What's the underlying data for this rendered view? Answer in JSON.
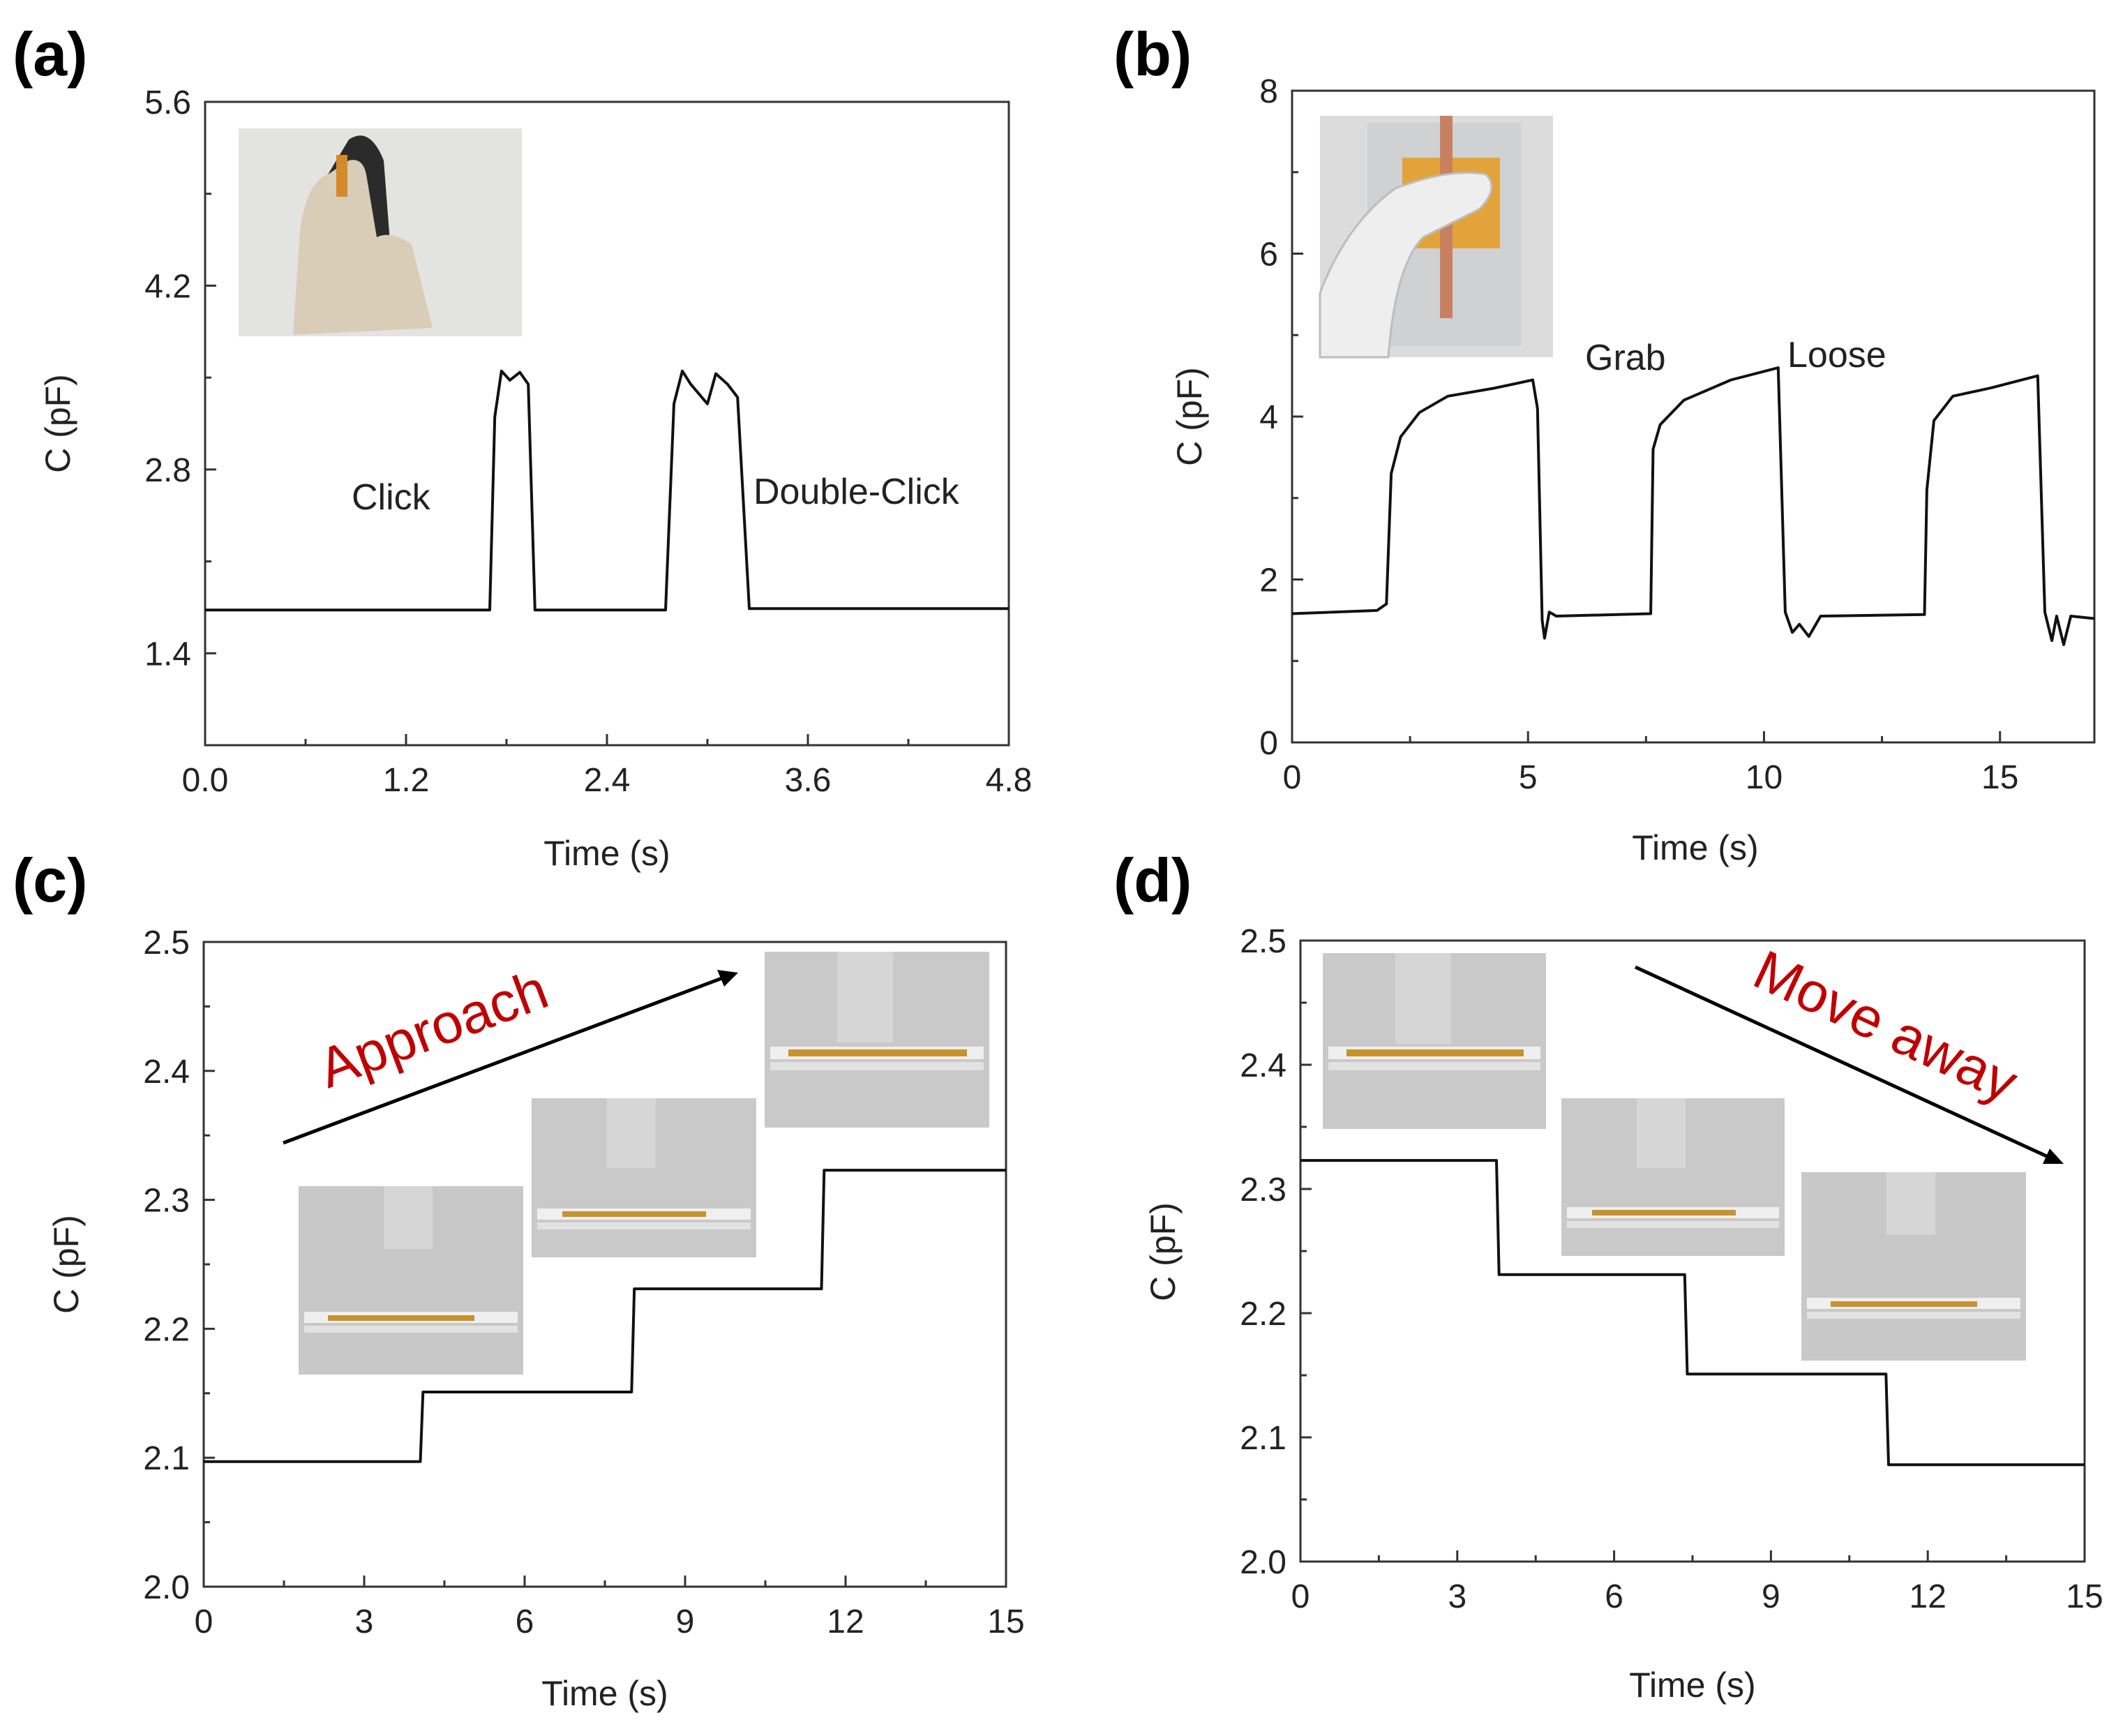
{
  "chart_data": [
    {
      "id": "a",
      "panel_label": "(a)",
      "type": "line",
      "xlabel": "Time (s)",
      "ylabel": "C (pF)",
      "xlim": [
        0,
        4.8
      ],
      "ylim": [
        0.7,
        5.6
      ],
      "xticks": [
        "0.0",
        "1.2",
        "2.4",
        "3.6",
        "4.8"
      ],
      "yticks": [
        "1.4",
        "2.8",
        "4.2",
        "5.6"
      ],
      "annotations": [
        "Click",
        "Double-Click"
      ],
      "inset_images": [
        "gloved-hand-mouse-photo"
      ],
      "series": [
        {
          "name": "capacitance",
          "x": [
            0,
            1.7,
            1.73,
            1.77,
            1.82,
            1.88,
            1.93,
            1.97,
            2.0,
            2.75,
            2.8,
            2.85,
            2.9,
            3.0,
            3.05,
            3.12,
            3.18,
            3.25,
            3.3,
            4.8
          ],
          "y": [
            1.73,
            1.73,
            3.2,
            3.55,
            3.48,
            3.54,
            3.45,
            1.73,
            1.73,
            1.73,
            3.3,
            3.55,
            3.45,
            3.3,
            3.53,
            3.45,
            3.35,
            1.74,
            1.74,
            1.74
          ]
        }
      ]
    },
    {
      "id": "b",
      "panel_label": "(b)",
      "type": "line",
      "xlabel": "Time (s)",
      "ylabel": "C (pF)",
      "xlim": [
        0,
        17
      ],
      "ylim": [
        0,
        8
      ],
      "xticks": [
        "0",
        "5",
        "10",
        "15"
      ],
      "yticks": [
        "0",
        "2",
        "4",
        "6",
        "8"
      ],
      "annotations": [
        "Grab",
        "Loose"
      ],
      "inset_images": [
        "gloved-hand-grab-photo"
      ],
      "series": [
        {
          "name": "capacitance",
          "x": [
            0,
            1.8,
            2.0,
            2.1,
            2.3,
            2.7,
            3.3,
            4.3,
            5.1,
            5.2,
            5.3,
            5.35,
            5.45,
            5.6,
            7.6,
            7.65,
            7.8,
            8.3,
            9.3,
            10.3,
            10.45,
            10.6,
            10.75,
            10.95,
            11.2,
            13.4,
            13.45,
            13.6,
            14.0,
            14.8,
            15.8,
            15.95,
            16.1,
            16.2,
            16.35,
            16.5,
            17.0
          ],
          "y": [
            1.58,
            1.62,
            1.7,
            3.3,
            3.75,
            4.05,
            4.25,
            4.35,
            4.45,
            4.1,
            1.5,
            1.28,
            1.6,
            1.55,
            1.58,
            3.6,
            3.9,
            4.2,
            4.45,
            4.6,
            1.6,
            1.35,
            1.45,
            1.3,
            1.55,
            1.57,
            3.1,
            3.95,
            4.25,
            4.35,
            4.5,
            1.6,
            1.25,
            1.55,
            1.2,
            1.55,
            1.52
          ]
        }
      ]
    },
    {
      "id": "c",
      "panel_label": "(c)",
      "type": "line",
      "xlabel": "Time (s)",
      "ylabel": "C (pF)",
      "xlim": [
        0,
        15
      ],
      "ylim": [
        2.0,
        2.5
      ],
      "xticks": [
        "0",
        "3",
        "6",
        "9",
        "12",
        "15"
      ],
      "yticks": [
        "2.0",
        "2.1",
        "2.2",
        "2.3",
        "2.4",
        "2.5"
      ],
      "annotations": [
        "Approach"
      ],
      "inset_images": [
        "sensor-far-photo",
        "sensor-mid-photo",
        "sensor-near-photo"
      ],
      "series": [
        {
          "name": "capacitance",
          "x": [
            0,
            4.05,
            4.1,
            8.0,
            8.05,
            11.55,
            11.6,
            15
          ],
          "y": [
            2.097,
            2.097,
            2.151,
            2.151,
            2.231,
            2.231,
            2.323,
            2.323
          ]
        }
      ]
    },
    {
      "id": "d",
      "panel_label": "(d)",
      "type": "line",
      "xlabel": "Time (s)",
      "ylabel": "C (pF)",
      "xlim": [
        0,
        15
      ],
      "ylim": [
        2.0,
        2.5
      ],
      "xticks": [
        "0",
        "3",
        "6",
        "9",
        "12",
        "15"
      ],
      "yticks": [
        "2.0",
        "2.1",
        "2.2",
        "2.3",
        "2.4",
        "2.5"
      ],
      "annotations": [
        "Move away"
      ],
      "inset_images": [
        "sensor-near-photo",
        "sensor-mid-photo",
        "sensor-far-photo"
      ],
      "series": [
        {
          "name": "capacitance",
          "x": [
            0,
            3.75,
            3.8,
            7.35,
            7.4,
            11.2,
            11.25,
            15
          ],
          "y": [
            2.323,
            2.323,
            2.231,
            2.231,
            2.151,
            2.151,
            2.078,
            2.078
          ]
        }
      ]
    }
  ]
}
